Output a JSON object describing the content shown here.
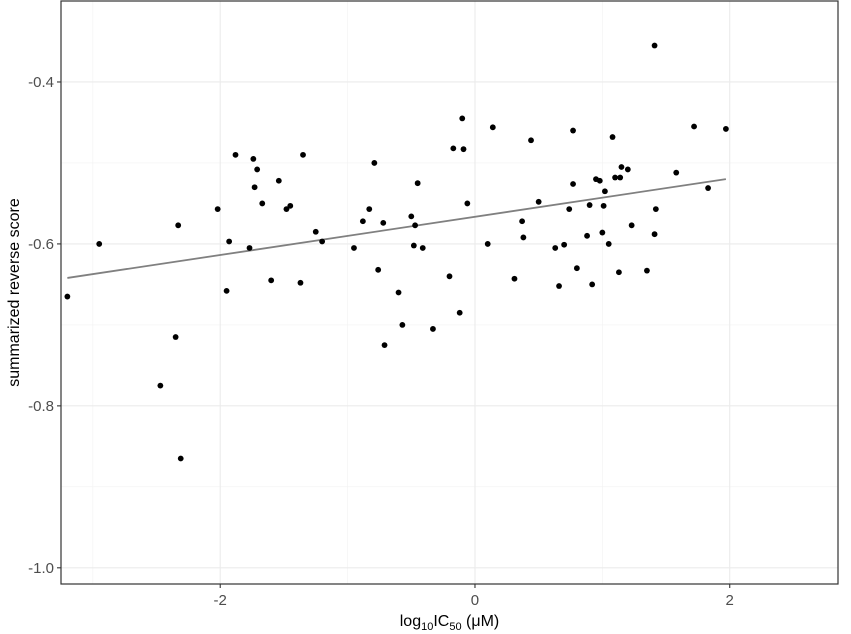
{
  "chart_data": {
    "type": "scatter",
    "ylabel": "summarized reverse score",
    "xlabel_parts": {
      "base": "log",
      "sub1": "10",
      "mid": "IC",
      "sub2": "50",
      "unit": " (μM)"
    },
    "xlim": [
      -3.25,
      2.85
    ],
    "ylim": [
      -1.02,
      -0.3
    ],
    "x_ticks": [
      -2,
      0,
      2
    ],
    "x_tick_labels": [
      "-2",
      "0",
      "2"
    ],
    "y_ticks": [
      -1.0,
      -0.8,
      -0.6,
      -0.4
    ],
    "y_tick_labels": [
      "-1.0",
      "-0.8",
      "-0.6",
      "-0.4"
    ],
    "grid": true,
    "points": [
      {
        "x": -3.2,
        "y": -0.665
      },
      {
        "x": -2.95,
        "y": -0.6
      },
      {
        "x": -2.47,
        "y": -0.775
      },
      {
        "x": -2.35,
        "y": -0.715
      },
      {
        "x": -2.33,
        "y": -0.577
      },
      {
        "x": -2.31,
        "y": -0.865
      },
      {
        "x": -2.02,
        "y": -0.557
      },
      {
        "x": -1.95,
        "y": -0.658
      },
      {
        "x": -1.93,
        "y": -0.597
      },
      {
        "x": -1.88,
        "y": -0.49
      },
      {
        "x": -1.77,
        "y": -0.605
      },
      {
        "x": -1.74,
        "y": -0.495
      },
      {
        "x": -1.73,
        "y": -0.53
      },
      {
        "x": -1.71,
        "y": -0.508
      },
      {
        "x": -1.67,
        "y": -0.55
      },
      {
        "x": -1.6,
        "y": -0.645
      },
      {
        "x": -1.54,
        "y": -0.522
      },
      {
        "x": -1.48,
        "y": -0.557
      },
      {
        "x": -1.45,
        "y": -0.553
      },
      {
        "x": -1.37,
        "y": -0.648
      },
      {
        "x": -1.35,
        "y": -0.49
      },
      {
        "x": -1.25,
        "y": -0.585
      },
      {
        "x": -1.2,
        "y": -0.597
      },
      {
        "x": -0.95,
        "y": -0.605
      },
      {
        "x": -0.88,
        "y": -0.572
      },
      {
        "x": -0.83,
        "y": -0.557
      },
      {
        "x": -0.79,
        "y": -0.5
      },
      {
        "x": -0.76,
        "y": -0.632
      },
      {
        "x": -0.72,
        "y": -0.574
      },
      {
        "x": -0.71,
        "y": -0.725
      },
      {
        "x": -0.6,
        "y": -0.66
      },
      {
        "x": -0.57,
        "y": -0.7
      },
      {
        "x": -0.5,
        "y": -0.566
      },
      {
        "x": -0.48,
        "y": -0.602
      },
      {
        "x": -0.47,
        "y": -0.577
      },
      {
        "x": -0.45,
        "y": -0.525
      },
      {
        "x": -0.41,
        "y": -0.605
      },
      {
        "x": -0.33,
        "y": -0.705
      },
      {
        "x": -0.2,
        "y": -0.64
      },
      {
        "x": -0.17,
        "y": -0.482
      },
      {
        "x": -0.12,
        "y": -0.685
      },
      {
        "x": -0.1,
        "y": -0.445
      },
      {
        "x": -0.09,
        "y": -0.483
      },
      {
        "x": -0.06,
        "y": -0.55
      },
      {
        "x": 0.1,
        "y": -0.6
      },
      {
        "x": 0.14,
        "y": -0.456
      },
      {
        "x": 0.31,
        "y": -0.643
      },
      {
        "x": 0.37,
        "y": -0.572
      },
      {
        "x": 0.38,
        "y": -0.592
      },
      {
        "x": 0.44,
        "y": -0.472
      },
      {
        "x": 0.5,
        "y": -0.548
      },
      {
        "x": 0.63,
        "y": -0.605
      },
      {
        "x": 0.66,
        "y": -0.652
      },
      {
        "x": 0.7,
        "y": -0.601
      },
      {
        "x": 0.74,
        "y": -0.557
      },
      {
        "x": 0.77,
        "y": -0.46
      },
      {
        "x": 0.77,
        "y": -0.526
      },
      {
        "x": 0.8,
        "y": -0.63
      },
      {
        "x": 0.88,
        "y": -0.59
      },
      {
        "x": 0.9,
        "y": -0.552
      },
      {
        "x": 0.92,
        "y": -0.65
      },
      {
        "x": 0.95,
        "y": -0.52
      },
      {
        "x": 0.98,
        "y": -0.522
      },
      {
        "x": 1.0,
        "y": -0.586
      },
      {
        "x": 1.01,
        "y": -0.553
      },
      {
        "x": 1.02,
        "y": -0.535
      },
      {
        "x": 1.05,
        "y": -0.6
      },
      {
        "x": 1.08,
        "y": -0.468
      },
      {
        "x": 1.1,
        "y": -0.518
      },
      {
        "x": 1.13,
        "y": -0.635
      },
      {
        "x": 1.14,
        "y": -0.518
      },
      {
        "x": 1.15,
        "y": -0.505
      },
      {
        "x": 1.2,
        "y": -0.508
      },
      {
        "x": 1.23,
        "y": -0.577
      },
      {
        "x": 1.35,
        "y": -0.633
      },
      {
        "x": 1.41,
        "y": -0.355
      },
      {
        "x": 1.41,
        "y": -0.588
      },
      {
        "x": 1.42,
        "y": -0.557
      },
      {
        "x": 1.58,
        "y": -0.512
      },
      {
        "x": 1.72,
        "y": -0.455
      },
      {
        "x": 1.83,
        "y": -0.531
      },
      {
        "x": 1.97,
        "y": -0.458
      }
    ],
    "regression": {
      "x": [
        -3.2,
        1.97
      ],
      "y": [
        -0.642,
        -0.52
      ]
    },
    "colors": {
      "point": "#000000",
      "line": "#808080",
      "grid": "#ebebeb",
      "border": "#333333",
      "panel": "#ffffff"
    }
  }
}
